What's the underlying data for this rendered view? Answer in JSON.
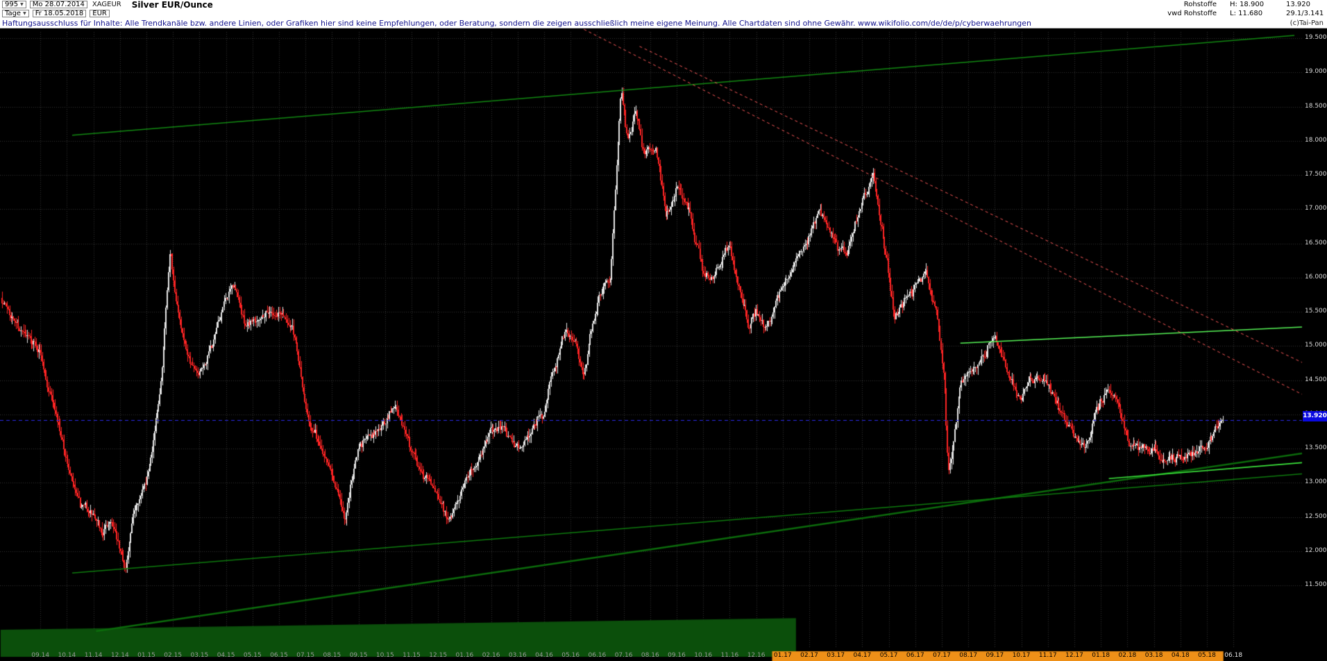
{
  "window": {
    "bars_count": "995",
    "first_date": "Mo 28.07.2014",
    "symbol": "XAGEUR",
    "title": "Silver EUR/Ounce",
    "timeframe": "Tage",
    "last_date": "Fr 18.05.2018",
    "currency": "EUR",
    "category": "Rohstoffe",
    "feed": "vwd Rohstoffe",
    "high_label": "H: 18.900",
    "low_label": "L: 11.680",
    "last_value": "13.920",
    "extra_value": "29.1/3.141",
    "copyright": "(c)Tai-Pan"
  },
  "disclaimer": "Haftungsausschluss für Inhalte: Alle Trendkanäle bzw. andere Linien, oder Grafiken hier sind keine Empfehlungen, oder Beratung, sondern die zeigen ausschließlich meine eigene Meinung. Alle Chartdaten sind ohne Gewähr.  www.wikifolio.com/de/de/p/cyberwaehrungen",
  "chart_data": {
    "type": "candlestick",
    "title": "Silver EUR/Ounce",
    "timeframe": "daily",
    "high": 18.9,
    "low": 11.68,
    "last": 13.92,
    "ylim": [
      11.3,
      19.75
    ],
    "grid": true,
    "y_ticks": [
      "19.500",
      "19.000",
      "18.500",
      "18.000",
      "17.500",
      "17.000",
      "16.500",
      "16.000",
      "15.500",
      "15.000",
      "14.500",
      "14.000",
      "13.500",
      "13.000",
      "12.500",
      "12.000",
      "11.500"
    ],
    "x_ticks": [
      {
        "label": "09.14",
        "style": "dim"
      },
      {
        "label": "10.14",
        "style": "dim"
      },
      {
        "label": "11.14",
        "style": "dim"
      },
      {
        "label": "12.14",
        "style": "dim"
      },
      {
        "label": "01.15",
        "style": "dim"
      },
      {
        "label": "02.15",
        "style": "dim"
      },
      {
        "label": "03.15",
        "style": "dim"
      },
      {
        "label": "04.15",
        "style": "dim"
      },
      {
        "label": "05.15",
        "style": "dim"
      },
      {
        "label": "06.15",
        "style": "dim"
      },
      {
        "label": "07.15",
        "style": "dim"
      },
      {
        "label": "08.15",
        "style": "dim"
      },
      {
        "label": "09.15",
        "style": "dim"
      },
      {
        "label": "10.15",
        "style": "dim"
      },
      {
        "label": "11.15",
        "style": "dim"
      },
      {
        "label": "12.15",
        "style": "dim"
      },
      {
        "label": "01.16",
        "style": "dim"
      },
      {
        "label": "02.16",
        "style": "dim"
      },
      {
        "label": "03.16",
        "style": "dim"
      },
      {
        "label": "04.16",
        "style": "dim"
      },
      {
        "label": "05.16",
        "style": "dim"
      },
      {
        "label": "06.16",
        "style": "dim"
      },
      {
        "label": "07.16",
        "style": "dim"
      },
      {
        "label": "08.16",
        "style": "dim"
      },
      {
        "label": "09.16",
        "style": "dim"
      },
      {
        "label": "10.16",
        "style": "dim"
      },
      {
        "label": "11.16",
        "style": "dim"
      },
      {
        "label": "12.16",
        "style": "dim"
      },
      {
        "label": "01.17",
        "style": "orange"
      },
      {
        "label": "02.17",
        "style": "orange"
      },
      {
        "label": "03.17",
        "style": "orange"
      },
      {
        "label": "04.17",
        "style": "orange"
      },
      {
        "label": "05.17",
        "style": "orange"
      },
      {
        "label": "06.17",
        "style": "orange"
      },
      {
        "label": "07.17",
        "style": "orange"
      },
      {
        "label": "08.17",
        "style": "orange"
      },
      {
        "label": "09.17",
        "style": "orange"
      },
      {
        "label": "10.17",
        "style": "orange"
      },
      {
        "label": "11.17",
        "style": "orange"
      },
      {
        "label": "12.17",
        "style": "orange"
      },
      {
        "label": "01.18",
        "style": "orange"
      },
      {
        "label": "02.18",
        "style": "orange"
      },
      {
        "label": "03.18",
        "style": "orange"
      },
      {
        "label": "04.18",
        "style": "orange"
      },
      {
        "label": "05.18",
        "style": "orange"
      },
      {
        "label": "06.18",
        "style": "bright"
      }
    ],
    "anchors": [
      [
        -0.45,
        15.7
      ],
      [
        0,
        15.45
      ],
      [
        0.5,
        15.1
      ],
      [
        1,
        14.9
      ],
      [
        1.5,
        14.25
      ],
      [
        2,
        13.35
      ],
      [
        2.5,
        12.55
      ],
      [
        3,
        12.45
      ],
      [
        3.3,
        12.15
      ],
      [
        3.7,
        12.45
      ],
      [
        4,
        11.95
      ],
      [
        4.2,
        11.7
      ],
      [
        4.6,
        12.65
      ],
      [
        5,
        13.05
      ],
      [
        5.5,
        14.4
      ],
      [
        5.9,
        16.4
      ],
      [
        6.1,
        15.55
      ],
      [
        6.5,
        15.0
      ],
      [
        7,
        14.45
      ],
      [
        7.5,
        14.95
      ],
      [
        8,
        15.65
      ],
      [
        8.3,
        15.85
      ],
      [
        8.7,
        15.3
      ],
      [
        9,
        15.45
      ],
      [
        9.5,
        15.6
      ],
      [
        10,
        15.55
      ],
      [
        10.5,
        15.35
      ],
      [
        10.8,
        14.6
      ],
      [
        11,
        14.05
      ],
      [
        11.5,
        13.55
      ],
      [
        12,
        13.3
      ],
      [
        12.5,
        12.5
      ],
      [
        13,
        13.55
      ],
      [
        13.4,
        13.75
      ],
      [
        14,
        13.9
      ],
      [
        14.4,
        14.15
      ],
      [
        15,
        13.45
      ],
      [
        15.5,
        13.15
      ],
      [
        16,
        12.85
      ],
      [
        16.4,
        12.55
      ],
      [
        17,
        13.0
      ],
      [
        17.5,
        13.35
      ],
      [
        18,
        13.75
      ],
      [
        18.5,
        13.9
      ],
      [
        19,
        13.6
      ],
      [
        19.5,
        13.8
      ],
      [
        20,
        14.05
      ],
      [
        20.8,
        15.25
      ],
      [
        21.2,
        15.1
      ],
      [
        21.5,
        14.65
      ],
      [
        22,
        15.7
      ],
      [
        22.5,
        16.1
      ],
      [
        22.9,
        18.85
      ],
      [
        23.15,
        18.1
      ],
      [
        23.45,
        18.45
      ],
      [
        23.8,
        17.75
      ],
      [
        24.2,
        17.95
      ],
      [
        24.6,
        16.95
      ],
      [
        25,
        17.3
      ],
      [
        25.5,
        17.0
      ],
      [
        26,
        16.15
      ],
      [
        26.4,
        16.05
      ],
      [
        27,
        16.45
      ],
      [
        27.7,
        15.35
      ],
      [
        28,
        15.55
      ],
      [
        28.4,
        15.25
      ],
      [
        29,
        15.9
      ],
      [
        29.5,
        16.3
      ],
      [
        30,
        16.65
      ],
      [
        30.4,
        16.95
      ],
      [
        31,
        16.5
      ],
      [
        31.4,
        16.25
      ],
      [
        32,
        17.05
      ],
      [
        32.4,
        17.45
      ],
      [
        32.8,
        16.6
      ],
      [
        33.2,
        15.45
      ],
      [
        33.6,
        15.7
      ],
      [
        34,
        15.9
      ],
      [
        34.4,
        16.05
      ],
      [
        34.8,
        15.5
      ],
      [
        35.1,
        14.55
      ],
      [
        35.25,
        13.05
      ],
      [
        35.7,
        14.35
      ],
      [
        36,
        14.75
      ],
      [
        36.5,
        14.95
      ],
      [
        37,
        15.05
      ],
      [
        37.5,
        14.65
      ],
      [
        38,
        14.3
      ],
      [
        38.5,
        14.55
      ],
      [
        39,
        14.5
      ],
      [
        39.5,
        14.0
      ],
      [
        40,
        13.6
      ],
      [
        40.4,
        13.35
      ],
      [
        40.8,
        14.0
      ],
      [
        41.2,
        14.35
      ],
      [
        41.6,
        14.1
      ],
      [
        42,
        13.7
      ],
      [
        42.5,
        13.4
      ],
      [
        43,
        13.45
      ],
      [
        43.5,
        13.3
      ],
      [
        44,
        13.35
      ],
      [
        44.5,
        13.55
      ],
      [
        45,
        13.6
      ],
      [
        45.3,
        13.8
      ],
      [
        45.62,
        13.92
      ]
    ],
    "trendlines": [
      {
        "name": "upper-channel",
        "points": [
          [
            2.2,
            18.08
          ],
          [
            48.3,
            19.54
          ]
        ],
        "color": "#128a12",
        "width": 1.5,
        "dash": null
      },
      {
        "name": "main-support",
        "points": [
          [
            3.1,
            10.83
          ],
          [
            48.6,
            13.43
          ]
        ],
        "color": "#0c6c0c",
        "width": 2.5,
        "dash": null
      },
      {
        "name": "secondary-support",
        "points": [
          [
            2.2,
            11.68
          ],
          [
            48.6,
            13.13
          ]
        ],
        "color": "#0e7c0e",
        "width": 1.5,
        "dash": null
      },
      {
        "name": "minor-resistance",
        "points": [
          [
            35.7,
            15.04
          ],
          [
            48.8,
            15.28
          ]
        ],
        "color": "#57f757",
        "width": 1.5,
        "dash": null
      },
      {
        "name": "minor-support",
        "points": [
          [
            41.3,
            13.06
          ],
          [
            48.8,
            13.3
          ]
        ],
        "color": "#3ce83c",
        "width": 1.5,
        "dash": null
      },
      {
        "name": "downtrend-1",
        "points": [
          [
            21.5,
            19.63
          ],
          [
            48.6,
            14.29
          ]
        ],
        "color": "#ff5a5a",
        "width": 1,
        "dash": [
          4,
          4
        ]
      },
      {
        "name": "downtrend-2",
        "points": [
          [
            23.6,
            19.38
          ],
          [
            48.8,
            14.72
          ]
        ],
        "color": "#ff5a5a",
        "width": 1,
        "dash": [
          4,
          4
        ]
      }
    ],
    "hline": {
      "price": 13.92,
      "color": "#2a2aee",
      "label": "13.920",
      "label_bg": "#0a0ae0"
    },
    "period_band": {
      "start_m": -0.5,
      "end_m": 29.5,
      "top_price_start": 10.85,
      "top_price_end": 11.02,
      "color": "#0b4f0b"
    },
    "highlight_band": {
      "start_m": 28.6,
      "end_m": 45.62,
      "color": "#ee9018"
    },
    "colors": {
      "bg": "#000000",
      "grid": "#343434",
      "up": "#e8e8e8",
      "down": "#ff2424"
    }
  }
}
